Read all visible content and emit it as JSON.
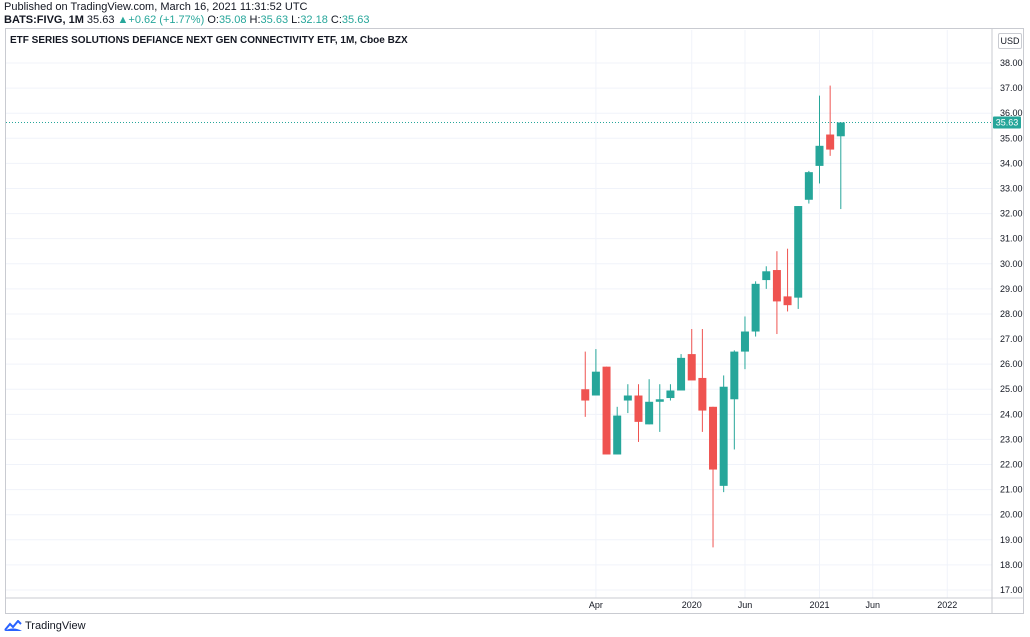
{
  "header": {
    "published": "Published on TradingView.com, March 16, 2021 11:31:52 UTC",
    "symbol": "BATS:FIVG, 1M",
    "last": "35.63",
    "change": "+0.62 (+1.77%)",
    "o_label": "O:",
    "o_val": "35.08",
    "h_label": "H:",
    "h_val": "35.63",
    "l_label": "L:",
    "l_val": "32.18",
    "c_label": "C:",
    "c_val": "35.63"
  },
  "chart_title": "ETF SERIES SOLUTIONS DEFIANCE NEXT GEN CONNECTIVITY ETF, 1M, Cboe BZX",
  "currency": "USD",
  "footer": {
    "brand": "TradingView"
  },
  "colors": {
    "up": "#26a69a",
    "down": "#ef5350",
    "grid": "#f0f3fa",
    "axis_text": "#131722",
    "last_line": "#26a69a"
  },
  "chart_data": {
    "type": "candlestick",
    "ylim": [
      17.0,
      38.0
    ],
    "y_ticks": [
      "17.00",
      "18.00",
      "19.00",
      "20.00",
      "21.00",
      "22.00",
      "23.00",
      "24.00",
      "25.00",
      "26.00",
      "27.00",
      "28.00",
      "29.00",
      "30.00",
      "31.00",
      "32.00",
      "33.00",
      "34.00",
      "35.00",
      "36.00",
      "37.00",
      "38.00"
    ],
    "x_ticks": [
      {
        "label": "Apr",
        "month": 3
      },
      {
        "label": "2020",
        "month": 12
      },
      {
        "label": "Jun",
        "month": 17
      },
      {
        "label": "2021",
        "month": 24
      },
      {
        "label": "Jun",
        "month": 29
      },
      {
        "label": "2022",
        "month": 36
      }
    ],
    "x_range_months": [
      -52.4,
      40.2
    ],
    "last_price": 35.63,
    "last_price_label": "35.63",
    "candles": [
      {
        "m": 2,
        "o": 25.0,
        "h": 26.5,
        "l": 23.9,
        "c": 24.55
      },
      {
        "m": 3,
        "o": 24.75,
        "h": 26.6,
        "l": 24.75,
        "c": 25.7
      },
      {
        "m": 4,
        "o": 25.9,
        "h": 25.9,
        "l": 22.4,
        "c": 22.4
      },
      {
        "m": 5,
        "o": 22.4,
        "h": 24.3,
        "l": 22.4,
        "c": 23.95
      },
      {
        "m": 6,
        "o": 24.55,
        "h": 25.2,
        "l": 24.05,
        "c": 24.75
      },
      {
        "m": 7,
        "o": 24.75,
        "h": 25.2,
        "l": 22.9,
        "c": 23.7
      },
      {
        "m": 8,
        "o": 23.6,
        "h": 25.4,
        "l": 23.6,
        "c": 24.5
      },
      {
        "m": 9,
        "o": 24.5,
        "h": 25.2,
        "l": 23.3,
        "c": 24.6
      },
      {
        "m": 10,
        "o": 24.65,
        "h": 25.2,
        "l": 24.55,
        "c": 24.95
      },
      {
        "m": 11,
        "o": 24.95,
        "h": 26.4,
        "l": 24.95,
        "c": 26.25
      },
      {
        "m": 12,
        "o": 26.4,
        "h": 27.4,
        "l": 25.45,
        "c": 25.35
      },
      {
        "m": 13,
        "o": 25.45,
        "h": 27.4,
        "l": 23.3,
        "c": 24.15
      },
      {
        "m": 14,
        "o": 24.3,
        "h": 24.3,
        "l": 18.7,
        "c": 21.8
      },
      {
        "m": 15,
        "o": 21.15,
        "h": 25.55,
        "l": 20.9,
        "c": 25.1
      },
      {
        "m": 16,
        "o": 24.6,
        "h": 26.55,
        "l": 22.6,
        "c": 26.5
      },
      {
        "m": 17,
        "o": 26.5,
        "h": 27.9,
        "l": 25.8,
        "c": 27.3
      },
      {
        "m": 18,
        "o": 27.3,
        "h": 29.3,
        "l": 27.1,
        "c": 29.2
      },
      {
        "m": 19,
        "o": 29.35,
        "h": 29.9,
        "l": 29.0,
        "c": 29.7
      },
      {
        "m": 20,
        "o": 29.75,
        "h": 30.5,
        "l": 27.2,
        "c": 28.5
      },
      {
        "m": 21,
        "o": 28.7,
        "h": 30.6,
        "l": 28.1,
        "c": 28.35
      },
      {
        "m": 22,
        "o": 28.65,
        "h": 32.3,
        "l": 28.2,
        "c": 32.3
      },
      {
        "m": 23,
        "o": 32.55,
        "h": 33.7,
        "l": 32.4,
        "c": 33.65
      },
      {
        "m": 24,
        "o": 33.9,
        "h": 36.7,
        "l": 33.2,
        "c": 34.7
      },
      {
        "m": 25,
        "o": 35.15,
        "h": 37.1,
        "l": 34.3,
        "c": 34.55
      },
      {
        "m": 26,
        "o": 35.08,
        "h": 35.63,
        "l": 32.18,
        "c": 35.63
      }
    ]
  }
}
